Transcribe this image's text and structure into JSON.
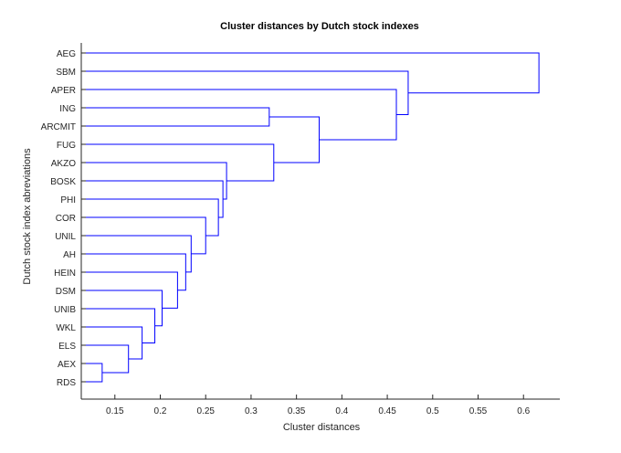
{
  "chart_data": {
    "type": "dendrogram",
    "title": "Cluster distances by Dutch stock indexes",
    "xlabel": "Cluster distances",
    "ylabel": "Dutch stock index abreviations",
    "xlim": [
      0.113,
      0.64
    ],
    "x_ticks": [
      0.15,
      0.2,
      0.25,
      0.3,
      0.35,
      0.4,
      0.45,
      0.5,
      0.55,
      0.6
    ],
    "x_tick_labels": [
      "0.15",
      "0.2",
      "0.25",
      "0.3",
      "0.35",
      "0.4",
      "0.45",
      "0.5",
      "0.55",
      "0.6"
    ],
    "leaves": [
      "AEG",
      "SBM",
      "APER",
      "ING",
      "ARCMIT",
      "FUG",
      "AKZO",
      "BOSK",
      "PHI",
      "COR",
      "UNIL",
      "AH",
      "HEIN",
      "DSM",
      "UNIB",
      "WKL",
      "ELS",
      "AEX",
      "RDS"
    ],
    "merges": [
      {
        "a": "AEX",
        "b": "RDS",
        "distance": 0.136
      },
      {
        "a": "ELS",
        "b": "#0",
        "distance": 0.165
      },
      {
        "a": "WKL",
        "b": "#1",
        "distance": 0.18
      },
      {
        "a": "UNIB",
        "b": "#2",
        "distance": 0.194
      },
      {
        "a": "DSM",
        "b": "#3",
        "distance": 0.202
      },
      {
        "a": "HEIN",
        "b": "#4",
        "distance": 0.219
      },
      {
        "a": "AH",
        "b": "#5",
        "distance": 0.228
      },
      {
        "a": "UNIL",
        "b": "#6",
        "distance": 0.234
      },
      {
        "a": "COR",
        "b": "#7",
        "distance": 0.25
      },
      {
        "a": "PHI",
        "b": "#8",
        "distance": 0.264
      },
      {
        "a": "BOSK",
        "b": "#9",
        "distance": 0.269
      },
      {
        "a": "AKZO",
        "b": "#10",
        "distance": 0.273
      },
      {
        "a": "FUG",
        "b": "#11",
        "distance": 0.325
      },
      {
        "a": "ING",
        "b": "ARCMIT",
        "distance": 0.32
      },
      {
        "a": "#13",
        "b": "#12",
        "distance": 0.375
      },
      {
        "a": "APER",
        "b": "#14",
        "distance": 0.46
      },
      {
        "a": "SBM",
        "b": "#15",
        "distance": 0.473
      },
      {
        "a": "AEG",
        "b": "#16",
        "distance": 0.617
      }
    ],
    "line_color": "#0000ff",
    "grid": false,
    "legend": "none"
  }
}
